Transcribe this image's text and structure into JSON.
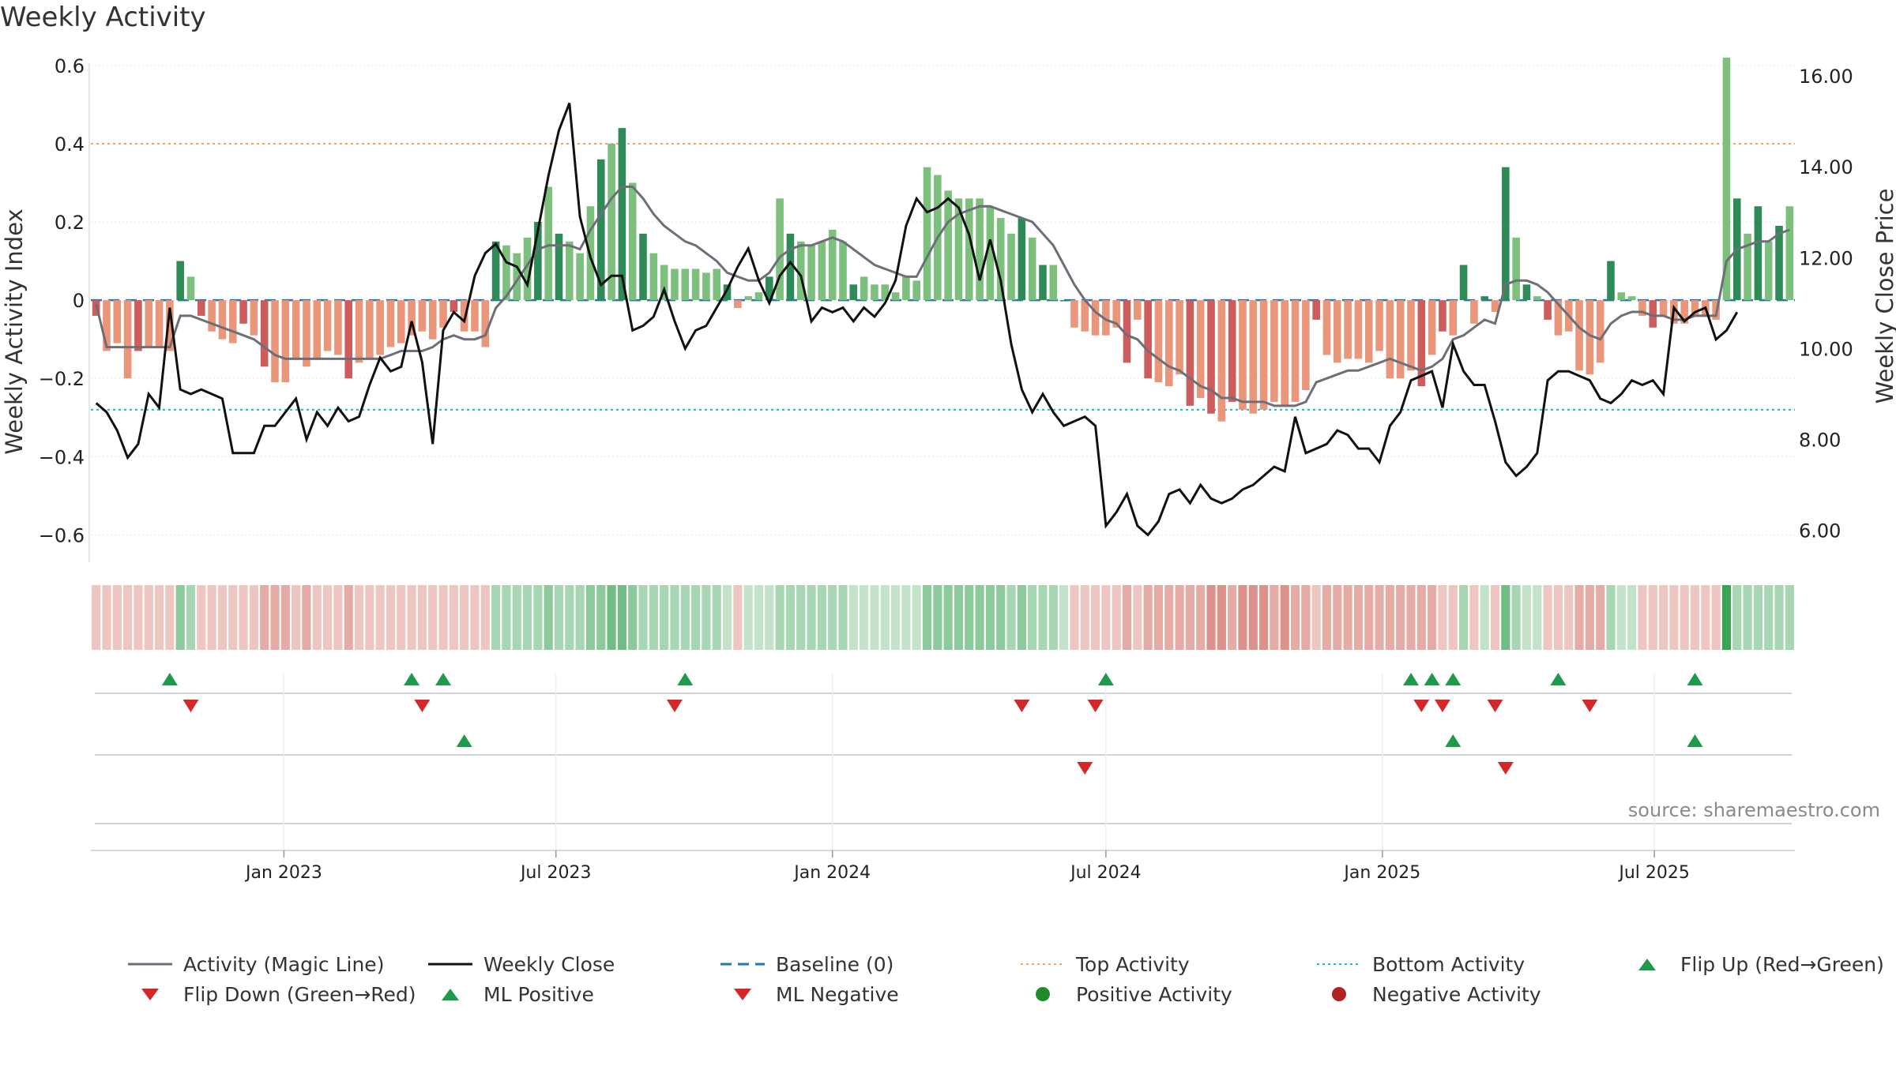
{
  "title": "Weekly Activity",
  "source": "source: sharemaestro.com",
  "colors": {
    "strong_green": "#2e8b57",
    "light_green": "#7dbf7d",
    "strong_red": "#cd5c5c",
    "light_red": "#e9967a",
    "magic_line": "#6e6e78",
    "close_line": "#111111",
    "baseline": "#1f77b4",
    "top": "#f4a460",
    "bottom": "#17becf",
    "marker_green": "#1e9a4a",
    "marker_red": "#d62728"
  },
  "chart_data": {
    "type": "bar",
    "title": "Weekly Activity",
    "ylabel": "Weekly Activity Index",
    "y2label": "Weekly Close Price",
    "ylim": [
      -0.67,
      0.62
    ],
    "y2lim": [
      5.3,
      16.4
    ],
    "yticks": [
      -0.6,
      -0.4,
      -0.2,
      0,
      0.2,
      0.4,
      0.6
    ],
    "ytick_labels": [
      "−0.6",
      "−0.4",
      "−0.2",
      "0",
      "0.2",
      "0.4",
      "0.6"
    ],
    "y2ticks": [
      6,
      8,
      10,
      12,
      14,
      16
    ],
    "y2tick_labels": [
      "6.00",
      "8.00",
      "10.00",
      "12.00",
      "14.00",
      "16.00"
    ],
    "x_start": "2022-08-29",
    "x_ticks": [
      {
        "label": "Jan 2023",
        "date": "2023-01-01"
      },
      {
        "label": "Jul 2023",
        "date": "2023-07-01"
      },
      {
        "label": "Jan 2024",
        "date": "2024-01-01"
      },
      {
        "label": "Jul 2024",
        "date": "2024-07-01"
      },
      {
        "label": "Jan 2025",
        "date": "2025-01-01"
      },
      {
        "label": "Jul 2025",
        "date": "2025-07-01"
      }
    ],
    "top_activity": 0.4,
    "bottom_activity": -0.28,
    "baseline": 0,
    "activity": [
      -0.04,
      -0.13,
      -0.11,
      -0.2,
      -0.13,
      -0.12,
      -0.12,
      -0.13,
      0.1,
      0.06,
      -0.04,
      -0.08,
      -0.1,
      -0.11,
      -0.06,
      -0.09,
      -0.17,
      -0.21,
      -0.21,
      -0.15,
      -0.17,
      -0.15,
      -0.13,
      -0.14,
      -0.2,
      -0.16,
      -0.15,
      -0.14,
      -0.12,
      -0.11,
      -0.09,
      -0.08,
      -0.1,
      -0.07,
      -0.03,
      -0.08,
      -0.08,
      -0.12,
      0.15,
      0.14,
      0.12,
      0.16,
      0.2,
      0.29,
      0.17,
      0.15,
      0.12,
      0.24,
      0.36,
      0.4,
      0.44,
      0.3,
      0.17,
      0.12,
      0.09,
      0.08,
      0.08,
      0.08,
      0.07,
      0.08,
      0.04,
      -0.02,
      0.01,
      0.02,
      0.06,
      0.26,
      0.17,
      0.15,
      0.14,
      0.15,
      0.18,
      0.15,
      0.04,
      0.06,
      0.04,
      0.04,
      0.02,
      0.06,
      0.05,
      0.34,
      0.32,
      0.28,
      0.26,
      0.26,
      0.26,
      0.24,
      0.21,
      0.17,
      0.21,
      0.16,
      0.09,
      0.09,
      0.0,
      -0.07,
      -0.08,
      -0.09,
      -0.09,
      -0.07,
      -0.16,
      -0.05,
      -0.2,
      -0.21,
      -0.22,
      -0.19,
      -0.27,
      -0.25,
      -0.29,
      -0.31,
      -0.26,
      -0.28,
      -0.29,
      -0.28,
      -0.26,
      -0.27,
      -0.26,
      -0.23,
      -0.05,
      -0.14,
      -0.16,
      -0.15,
      -0.15,
      -0.16,
      -0.13,
      -0.2,
      -0.2,
      -0.18,
      -0.22,
      -0.14,
      -0.08,
      -0.09,
      0.09,
      -0.06,
      0.01,
      -0.03,
      0.34,
      0.16,
      0.04,
      0.01,
      -0.05,
      -0.09,
      -0.08,
      -0.18,
      -0.19,
      -0.16,
      0.1,
      0.02,
      0.01,
      -0.04,
      -0.07,
      -0.04,
      -0.06,
      -0.06,
      -0.04,
      -0.04,
      -0.05,
      0.62,
      0.26,
      0.17,
      0.24,
      0.15,
      0.19,
      0.24
    ],
    "magic_line": [
      -0.01,
      -0.12,
      -0.12,
      -0.12,
      -0.12,
      -0.12,
      -0.12,
      -0.12,
      -0.04,
      -0.04,
      -0.05,
      -0.06,
      -0.07,
      -0.08,
      -0.09,
      -0.1,
      -0.12,
      -0.14,
      -0.15,
      -0.15,
      -0.15,
      -0.15,
      -0.15,
      -0.15,
      -0.15,
      -0.15,
      -0.15,
      -0.15,
      -0.14,
      -0.13,
      -0.13,
      -0.13,
      -0.12,
      -0.1,
      -0.09,
      -0.1,
      -0.1,
      -0.09,
      -0.02,
      0.01,
      0.05,
      0.09,
      0.13,
      0.14,
      0.14,
      0.14,
      0.13,
      0.18,
      0.22,
      0.26,
      0.29,
      0.29,
      0.26,
      0.22,
      0.19,
      0.17,
      0.15,
      0.14,
      0.12,
      0.1,
      0.07,
      0.06,
      0.05,
      0.05,
      0.07,
      0.11,
      0.13,
      0.14,
      0.14,
      0.15,
      0.16,
      0.15,
      0.13,
      0.11,
      0.09,
      0.08,
      0.07,
      0.06,
      0.06,
      0.11,
      0.16,
      0.2,
      0.22,
      0.23,
      0.24,
      0.24,
      0.23,
      0.22,
      0.21,
      0.2,
      0.17,
      0.14,
      0.09,
      0.04,
      0.0,
      -0.03,
      -0.05,
      -0.06,
      -0.09,
      -0.1,
      -0.13,
      -0.15,
      -0.17,
      -0.18,
      -0.2,
      -0.22,
      -0.23,
      -0.25,
      -0.25,
      -0.26,
      -0.26,
      -0.26,
      -0.27,
      -0.27,
      -0.27,
      -0.26,
      -0.21,
      -0.2,
      -0.19,
      -0.18,
      -0.18,
      -0.17,
      -0.16,
      -0.15,
      -0.16,
      -0.17,
      -0.18,
      -0.17,
      -0.15,
      -0.1,
      -0.09,
      -0.07,
      -0.05,
      -0.06,
      0.04,
      0.05,
      0.05,
      0.04,
      0.02,
      -0.01,
      -0.04,
      -0.07,
      -0.09,
      -0.1,
      -0.06,
      -0.04,
      -0.03,
      -0.03,
      -0.04,
      -0.04,
      -0.05,
      -0.05,
      -0.04,
      -0.04,
      -0.04,
      0.1,
      0.13,
      0.14,
      0.15,
      0.15,
      0.17,
      0.18
    ],
    "weekly_close": [
      8.8,
      8.6,
      8.2,
      7.6,
      7.9,
      9.0,
      8.7,
      10.9,
      9.1,
      9.0,
      9.1,
      9.0,
      8.9,
      7.7,
      7.7,
      7.7,
      8.3,
      8.3,
      8.6,
      8.9,
      8.0,
      8.6,
      8.3,
      8.7,
      8.4,
      8.5,
      9.2,
      9.8,
      9.5,
      9.6,
      10.6,
      9.7,
      7.9,
      10.4,
      10.8,
      10.6,
      11.6,
      12.1,
      12.3,
      11.9,
      11.8,
      11.4,
      12.6,
      13.8,
      14.8,
      15.4,
      12.9,
      12.0,
      11.4,
      11.6,
      11.6,
      10.4,
      10.5,
      10.7,
      11.3,
      10.6,
      10.0,
      10.4,
      10.5,
      10.9,
      11.3,
      11.8,
      12.2,
      11.5,
      11.0,
      11.6,
      11.9,
      11.6,
      10.6,
      10.9,
      10.8,
      10.9,
      10.6,
      10.9,
      10.7,
      11.0,
      11.5,
      12.7,
      13.3,
      13.0,
      13.1,
      13.3,
      13.1,
      12.5,
      11.5,
      12.4,
      11.5,
      10.1,
      9.1,
      8.6,
      9.0,
      8.6,
      8.3,
      8.4,
      8.5,
      8.3,
      6.1,
      6.4,
      6.8,
      6.1,
      5.9,
      6.2,
      6.8,
      6.9,
      6.6,
      7.0,
      6.7,
      6.6,
      6.7,
      6.9,
      7.0,
      7.2,
      7.4,
      7.3,
      8.5,
      7.7,
      7.8,
      7.9,
      8.2,
      8.1,
      7.8,
      7.8,
      7.5,
      8.3,
      8.6,
      9.3,
      9.4,
      9.5,
      8.7,
      10.1,
      9.5,
      9.2,
      9.2,
      8.4,
      7.5,
      7.2,
      7.4,
      7.7,
      9.3,
      9.5,
      9.5,
      9.4,
      9.3,
      8.9,
      8.8,
      9.0,
      9.3,
      9.2,
      9.3,
      9.0,
      10.9,
      10.6,
      10.8,
      10.9,
      10.2,
      10.4,
      10.8
    ],
    "band_levels": [
      1,
      1,
      1,
      1,
      1,
      1,
      1,
      1,
      3,
      2,
      1,
      1,
      1,
      1,
      1,
      1,
      2,
      2,
      2,
      1,
      2,
      1,
      1,
      1,
      2,
      1,
      1,
      1,
      1,
      1,
      1,
      1,
      1,
      1,
      1,
      1,
      1,
      1,
      2,
      2,
      2,
      2,
      2,
      3,
      2,
      2,
      2,
      3,
      3,
      4,
      4,
      3,
      2,
      2,
      2,
      2,
      2,
      2,
      2,
      2,
      1,
      1,
      1,
      1,
      1,
      2,
      2,
      2,
      2,
      2,
      2,
      2,
      1,
      1,
      1,
      1,
      1,
      1,
      1,
      3,
      3,
      3,
      3,
      3,
      3,
      3,
      3,
      2,
      3,
      2,
      2,
      2,
      1,
      1,
      1,
      1,
      1,
      1,
      2,
      1,
      2,
      2,
      2,
      2,
      2,
      2,
      3,
      3,
      2,
      3,
      3,
      3,
      2,
      3,
      2,
      2,
      1,
      2,
      2,
      2,
      2,
      2,
      2,
      2,
      2,
      2,
      2,
      2,
      1,
      1,
      2,
      1,
      1,
      1,
      4,
      2,
      1,
      1,
      1,
      1,
      1,
      2,
      2,
      2,
      2,
      1,
      1,
      1,
      1,
      1,
      1,
      1,
      1,
      1,
      1,
      6,
      2,
      2,
      2,
      2,
      2,
      2
    ],
    "markers": {
      "flip_up": [
        7,
        30,
        33,
        56,
        96,
        125,
        127,
        129,
        139,
        152
      ],
      "flip_down": [
        9,
        31,
        55,
        88,
        95,
        126,
        128,
        133,
        142
      ],
      "ml_positive": [
        35,
        129,
        152
      ],
      "ml_negative": [
        94,
        134
      ]
    }
  },
  "legend": [
    {
      "label": "Activity (Magic Line)",
      "icon": "gray-line"
    },
    {
      "label": "Weekly Close",
      "icon": "black-line"
    },
    {
      "label": "Baseline (0)",
      "icon": "blue-dash"
    },
    {
      "label": "Top Activity",
      "icon": "orange-dot-line"
    },
    {
      "label": "Bottom Activity",
      "icon": "cyan-dot-line"
    },
    {
      "label": "Flip Up (Red→Green)",
      "icon": "green-triangle-up"
    },
    {
      "label": "Flip Down (Green→Red)",
      "icon": "red-triangle-down"
    },
    {
      "label": "ML Positive",
      "icon": "green-triangle-up"
    },
    {
      "label": "ML Negative",
      "icon": "red-triangle-down"
    },
    {
      "label": "Positive Activity",
      "icon": "green-circle"
    },
    {
      "label": "Negative Activity",
      "icon": "red-circle"
    }
  ]
}
